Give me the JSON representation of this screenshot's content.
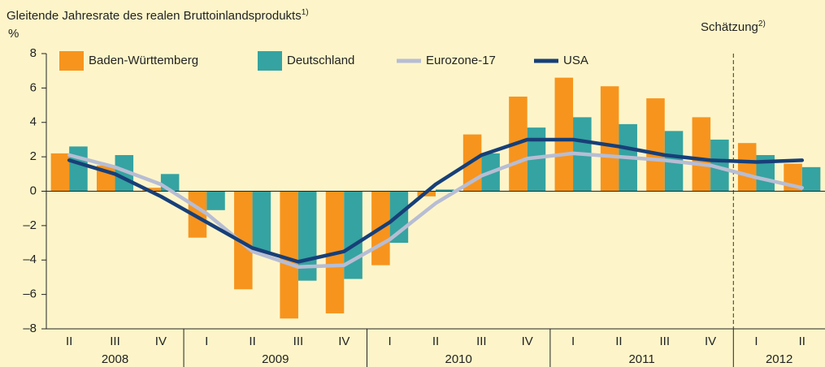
{
  "chart_data": {
    "type": "bar_line",
    "title": "Gleitende Jahresrate des realen Bruttoinlandsprodukts",
    "title_note": "1)",
    "ylabel": "%",
    "annotation": "Schätzung",
    "annotation_note": "2)",
    "estimate_start_category": 15,
    "category_groups": [
      {
        "name": "2008",
        "categories": [
          "II",
          "III",
          "IV"
        ]
      },
      {
        "name": "2009",
        "categories": [
          "I",
          "II",
          "III",
          "IV"
        ]
      },
      {
        "name": "2010",
        "categories": [
          "I",
          "II",
          "III",
          "IV"
        ]
      },
      {
        "name": "2011",
        "categories": [
          "I",
          "II",
          "III",
          "IV"
        ]
      },
      {
        "name": "2012",
        "categories": [
          "I",
          "II"
        ]
      }
    ],
    "series": [
      {
        "name": "Baden-Württemberg",
        "kind": "bar",
        "color": "#f7941d",
        "values": [
          2.2,
          1.5,
          0.2,
          -2.7,
          -5.7,
          -7.4,
          -7.1,
          -4.3,
          -0.3,
          3.3,
          5.5,
          6.6,
          6.1,
          5.4,
          4.3,
          2.8,
          1.6
        ]
      },
      {
        "name": "Deutschland",
        "kind": "bar",
        "color": "#35a3a1",
        "values": [
          2.6,
          2.1,
          1.0,
          -1.1,
          -3.5,
          -5.2,
          -5.1,
          -3.0,
          0.1,
          2.2,
          3.7,
          4.3,
          3.9,
          3.5,
          3.0,
          2.1,
          1.4
        ]
      },
      {
        "name": "Eurozone-17",
        "kind": "line",
        "color": "#b7bdd4",
        "values": [
          2.1,
          1.4,
          0.4,
          -1.3,
          -3.5,
          -4.4,
          -4.3,
          -2.8,
          -0.7,
          0.9,
          1.9,
          2.2,
          2.0,
          1.8,
          1.5,
          0.8,
          0.2
        ]
      },
      {
        "name": "USA",
        "kind": "line",
        "color": "#173f78",
        "values": [
          1.8,
          1.0,
          -0.3,
          -1.8,
          -3.3,
          -4.1,
          -3.5,
          -1.8,
          0.4,
          2.1,
          3.0,
          3.0,
          2.6,
          2.1,
          1.8,
          1.7,
          1.8
        ]
      }
    ],
    "ylim": [
      -8,
      8
    ],
    "yticks": [
      {
        "value": -8,
        "label": "–8"
      },
      {
        "value": -6,
        "label": "–6"
      },
      {
        "value": -4,
        "label": "–4"
      },
      {
        "value": -2,
        "label": "–2"
      },
      0,
      2,
      4,
      6,
      8
    ]
  }
}
